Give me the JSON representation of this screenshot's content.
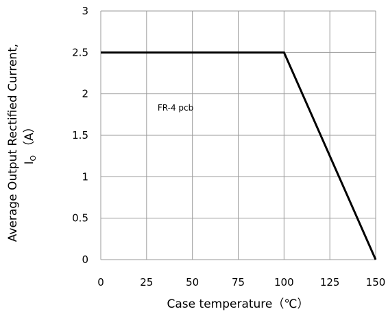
{
  "chart_data": {
    "type": "line",
    "xlabel": "Case temperature（℃）",
    "ylabel_line1": "Average Output  Rectified Current,",
    "ylabel_line2": "I",
    "ylabel_line2_sub": "O",
    "ylabel_line2_rest": "（A）",
    "x_ticks": [
      0,
      25,
      50,
      75,
      100,
      125,
      150
    ],
    "y_ticks": [
      0,
      0.5,
      1,
      1.5,
      2,
      2.5,
      3
    ],
    "y_tick_labels": [
      "0",
      "0.5",
      "1",
      "1.5",
      "2",
      "2.5",
      "3"
    ],
    "xlim": [
      0,
      150
    ],
    "ylim": [
      0,
      3
    ],
    "grid": true,
    "annotation": {
      "text": "FR-4  pcb",
      "x": 31,
      "y": 1.8
    },
    "series": [
      {
        "x": [
          0,
          100,
          150
        ],
        "y": [
          2.5,
          2.5,
          0
        ],
        "color": "#000000"
      }
    ]
  }
}
